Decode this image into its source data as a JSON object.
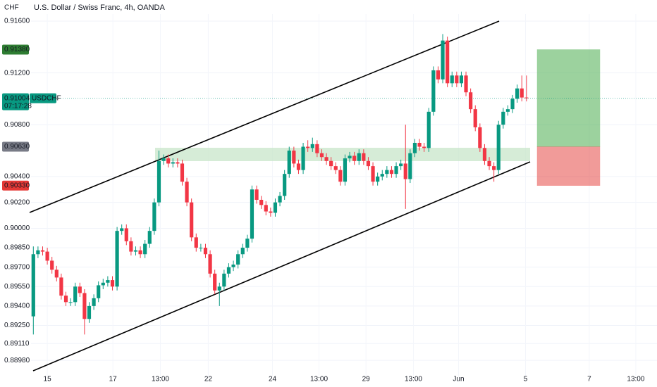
{
  "chart_data": {
    "type": "candlestick",
    "title": "U.S. Dollar / Swiss Franc, 4h, OANDA",
    "y_unit": "CHF",
    "x": [
      0,
      1,
      2,
      3,
      4,
      5,
      6,
      7,
      8,
      9,
      10,
      11,
      12,
      13,
      14,
      15,
      16,
      17,
      18,
      19,
      20,
      21,
      22,
      23,
      24,
      25,
      26,
      27,
      28,
      29,
      30,
      31,
      32,
      33,
      34,
      35,
      36,
      37,
      38,
      39,
      40,
      41,
      42,
      43,
      44,
      45,
      46,
      47,
      48,
      49,
      50,
      51,
      52,
      53,
      54,
      55,
      56,
      57,
      58,
      59,
      60,
      61,
      62,
      63,
      64,
      65,
      66,
      67,
      68,
      69,
      70,
      71,
      72,
      73,
      74,
      75,
      76,
      77,
      78,
      79,
      80,
      81,
      82,
      83,
      84,
      85,
      86,
      87,
      88,
      89,
      90,
      91,
      92,
      93,
      94,
      95,
      96,
      97,
      98,
      99,
      100,
      101,
      102,
      103,
      104,
      105,
      106
    ],
    "open": [
      0.8932,
      0.898,
      0.8983,
      0.8982,
      0.8975,
      0.8968,
      0.8962,
      0.8948,
      0.8943,
      0.8943,
      0.8955,
      0.895,
      0.893,
      0.894,
      0.8946,
      0.8956,
      0.8958,
      0.896,
      0.8955,
      0.8998,
      0.9,
      0.899,
      0.8982,
      0.8983,
      0.898,
      0.8988,
      0.8998,
      0.902,
      0.9052,
      0.9054,
      0.905,
      0.9051,
      0.905,
      0.9036,
      0.902,
      0.8993,
      0.8985,
      0.8985,
      0.898,
      0.8965,
      0.8952,
      0.8955,
      0.8965,
      0.897,
      0.8972,
      0.898,
      0.8985,
      0.8992,
      0.903,
      0.9022,
      0.9018,
      0.9013,
      0.9012,
      0.902,
      0.9025,
      0.9042,
      0.906,
      0.905,
      0.9045,
      0.9063,
      0.9062,
      0.9065,
      0.9058,
      0.9055,
      0.9052,
      0.9048,
      0.9045,
      0.9036,
      0.9054,
      0.9056,
      0.9052,
      0.9058,
      0.9052,
      0.9048,
      0.9036,
      0.904,
      0.9042,
      0.9045,
      0.9042,
      0.9048,
      0.905,
      0.9038,
      0.9058,
      0.9066,
      0.9063,
      0.9062,
      0.909,
      0.9122,
      0.9115,
      0.9145,
      0.9112,
      0.9118,
      0.9112,
      0.9118,
      0.9105,
      0.9092,
      0.9078,
      0.9062,
      0.9052,
      0.9048,
      0.9045,
      0.908,
      0.909,
      0.9092,
      0.91,
      0.9108,
      0.9101
    ],
    "high": [
      0.8986,
      0.8986,
      0.8986,
      0.8985,
      0.8978,
      0.8971,
      0.8965,
      0.8951,
      0.8946,
      0.8958,
      0.8958,
      0.8953,
      0.8943,
      0.8949,
      0.8959,
      0.8961,
      0.8963,
      0.8963,
      0.9001,
      0.9003,
      0.9003,
      0.8993,
      0.8986,
      0.8986,
      0.8991,
      0.9001,
      0.9023,
      0.906,
      0.9057,
      0.9057,
      0.9054,
      0.9054,
      0.9053,
      0.9039,
      0.9023,
      0.8996,
      0.8988,
      0.8988,
      0.8983,
      0.8968,
      0.8958,
      0.8968,
      0.8973,
      0.8975,
      0.8983,
      0.8988,
      0.8995,
      0.9033,
      0.9033,
      0.9025,
      0.9021,
      0.9016,
      0.9023,
      0.9028,
      0.9045,
      0.9063,
      0.9063,
      0.9053,
      0.9066,
      0.9068,
      0.907,
      0.9068,
      0.9061,
      0.9058,
      0.9055,
      0.9051,
      0.9048,
      0.9057,
      0.9059,
      0.9059,
      0.9061,
      0.9061,
      0.9055,
      0.9051,
      0.9043,
      0.9045,
      0.9048,
      0.9048,
      0.9051,
      0.9053,
      0.908,
      0.9061,
      0.9069,
      0.9069,
      0.9066,
      0.9093,
      0.9125,
      0.9125,
      0.915,
      0.9148,
      0.9121,
      0.9121,
      0.9121,
      0.9121,
      0.9108,
      0.9095,
      0.9081,
      0.9065,
      0.9055,
      0.9051,
      0.9083,
      0.9093,
      0.9095,
      0.9103,
      0.9111,
      0.9118,
      0.9118
    ],
    "low": [
      0.8918,
      0.8977,
      0.8979,
      0.8972,
      0.8965,
      0.8959,
      0.8945,
      0.894,
      0.894,
      0.894,
      0.8947,
      0.8918,
      0.8927,
      0.8937,
      0.8943,
      0.8953,
      0.8955,
      0.8952,
      0.8952,
      0.8995,
      0.8987,
      0.8979,
      0.8979,
      0.8977,
      0.8977,
      0.8985,
      0.8995,
      0.9017,
      0.9049,
      0.9047,
      0.9047,
      0.9047,
      0.9033,
      0.9017,
      0.899,
      0.8982,
      0.8982,
      0.8977,
      0.8962,
      0.8949,
      0.894,
      0.8952,
      0.8962,
      0.8967,
      0.8969,
      0.8977,
      0.8982,
      0.8989,
      0.9019,
      0.9015,
      0.901,
      0.9009,
      0.9009,
      0.9017,
      0.9022,
      0.9039,
      0.9047,
      0.9042,
      0.9042,
      0.9059,
      0.9059,
      0.9055,
      0.9052,
      0.9049,
      0.9045,
      0.9042,
      0.9033,
      0.9033,
      0.9051,
      0.9049,
      0.9049,
      0.9049,
      0.9045,
      0.9033,
      0.9033,
      0.9037,
      0.9039,
      0.9039,
      0.9039,
      0.9045,
      0.9015,
      0.9035,
      0.9055,
      0.906,
      0.9059,
      0.9059,
      0.9087,
      0.9112,
      0.9112,
      0.9109,
      0.9109,
      0.9109,
      0.9109,
      0.9102,
      0.9089,
      0.9075,
      0.9059,
      0.9049,
      0.9045,
      0.9036,
      0.9042,
      0.9077,
      0.9087,
      0.9089,
      0.9097,
      0.9098,
      0.9098
    ],
    "close": [
      0.898,
      0.8983,
      0.8982,
      0.8975,
      0.8968,
      0.8962,
      0.8948,
      0.8943,
      0.8943,
      0.8955,
      0.895,
      0.893,
      0.894,
      0.8946,
      0.8956,
      0.8958,
      0.896,
      0.8955,
      0.8998,
      0.9,
      0.899,
      0.8982,
      0.8983,
      0.898,
      0.8988,
      0.8998,
      0.902,
      0.9052,
      0.9054,
      0.905,
      0.9051,
      0.905,
      0.9036,
      0.902,
      0.8993,
      0.8985,
      0.8985,
      0.898,
      0.8965,
      0.8952,
      0.8955,
      0.8965,
      0.897,
      0.8972,
      0.898,
      0.8985,
      0.8992,
      0.903,
      0.9022,
      0.9018,
      0.9013,
      0.9012,
      0.902,
      0.9025,
      0.9042,
      0.906,
      0.905,
      0.9045,
      0.9063,
      0.9062,
      0.9065,
      0.9058,
      0.9055,
      0.9052,
      0.9048,
      0.9045,
      0.9036,
      0.9054,
      0.9056,
      0.9052,
      0.9058,
      0.9052,
      0.9048,
      0.9036,
      0.904,
      0.9042,
      0.9045,
      0.9042,
      0.9048,
      0.905,
      0.9038,
      0.9058,
      0.9066,
      0.9063,
      0.9062,
      0.909,
      0.9122,
      0.9115,
      0.9145,
      0.9112,
      0.9118,
      0.9112,
      0.9118,
      0.9105,
      0.9092,
      0.9078,
      0.9062,
      0.9052,
      0.9048,
      0.9045,
      0.908,
      0.909,
      0.9092,
      0.91,
      0.9108,
      0.9101,
      0.91004
    ],
    "up_color": "#089981",
    "down_color": "#f23645",
    "xlim": [
      -0.5,
      133.3
    ],
    "xticks": [
      {
        "value": 3,
        "label": "15"
      },
      {
        "value": 17.1,
        "label": "17"
      },
      {
        "value": 27.3,
        "label": "13:00"
      },
      {
        "value": 37.6,
        "label": "22"
      },
      {
        "value": 51.4,
        "label": "24"
      },
      {
        "value": 61.4,
        "label": "13:00"
      },
      {
        "value": 71.5,
        "label": "29"
      },
      {
        "value": 81.7,
        "label": "13:00"
      },
      {
        "value": 91.4,
        "label": "Jun"
      },
      {
        "value": 105.8,
        "label": "5"
      },
      {
        "value": 119.5,
        "label": "7"
      },
      {
        "value": 129.5,
        "label": "13:00"
      }
    ],
    "ylim": [
      0.88856,
      0.91763
    ],
    "yticks": [
      {
        "value": 0.916,
        "label": "0.91600"
      },
      {
        "value": 0.912,
        "label": "0.91200"
      },
      {
        "value": 0.908,
        "label": "0.90800"
      },
      {
        "value": 0.904,
        "label": "0.90400"
      },
      {
        "value": 0.902,
        "label": "0.90200"
      },
      {
        "value": 0.9,
        "label": "0.90000"
      },
      {
        "value": 0.8985,
        "label": "0.89850"
      },
      {
        "value": 0.897,
        "label": "0.89700"
      },
      {
        "value": 0.8955,
        "label": "0.89550"
      },
      {
        "value": 0.894,
        "label": "0.89400"
      },
      {
        "value": 0.8925,
        "label": "0.89250"
      },
      {
        "value": 0.8911,
        "label": "0.89110"
      },
      {
        "value": 0.8898,
        "label": "0.88980"
      }
    ],
    "grid": true,
    "price_labels": [
      {
        "value": 0.9138,
        "label": "0.91380",
        "color": "#2e7d32"
      },
      {
        "value": 0.9063,
        "label": "0.90630",
        "color": "#787b86"
      },
      {
        "value": 0.9033,
        "label": "0.90330",
        "color": "#e53935"
      }
    ],
    "last_price": {
      "value": 0.91004,
      "label": "0.91004",
      "symbol": "USDCHF",
      "countdown": "07:17:28",
      "color": "#089981"
    }
  }
}
